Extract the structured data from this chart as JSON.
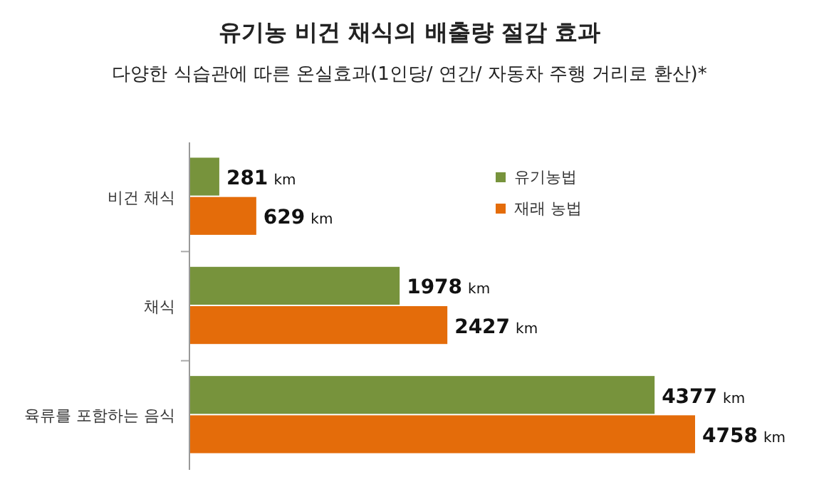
{
  "chart_data": {
    "type": "bar",
    "orientation": "horizontal",
    "title": "유기농 비건 채식의 배출량 절감 효과",
    "subtitle": "다양한 식습관에 따른 온실효과(1인당/ 연간/ 자동차 주행 거리로 환산)*",
    "categories": [
      "비건 채식",
      "채식",
      "육류를 포함하는 음식"
    ],
    "legend": "right",
    "series": [
      {
        "name": "유기농법",
        "color": "#77933c",
        "values": [
          281,
          1978,
          4377
        ],
        "value_labels": [
          "281 km",
          "1978 km",
          "4377 km"
        ]
      },
      {
        "name": "재래 농법",
        "color": "#e46c0a",
        "values": [
          629,
          2427,
          4758
        ],
        "value_labels": [
          "629 km",
          "2427 km",
          "4758 km"
        ]
      }
    ]
  }
}
